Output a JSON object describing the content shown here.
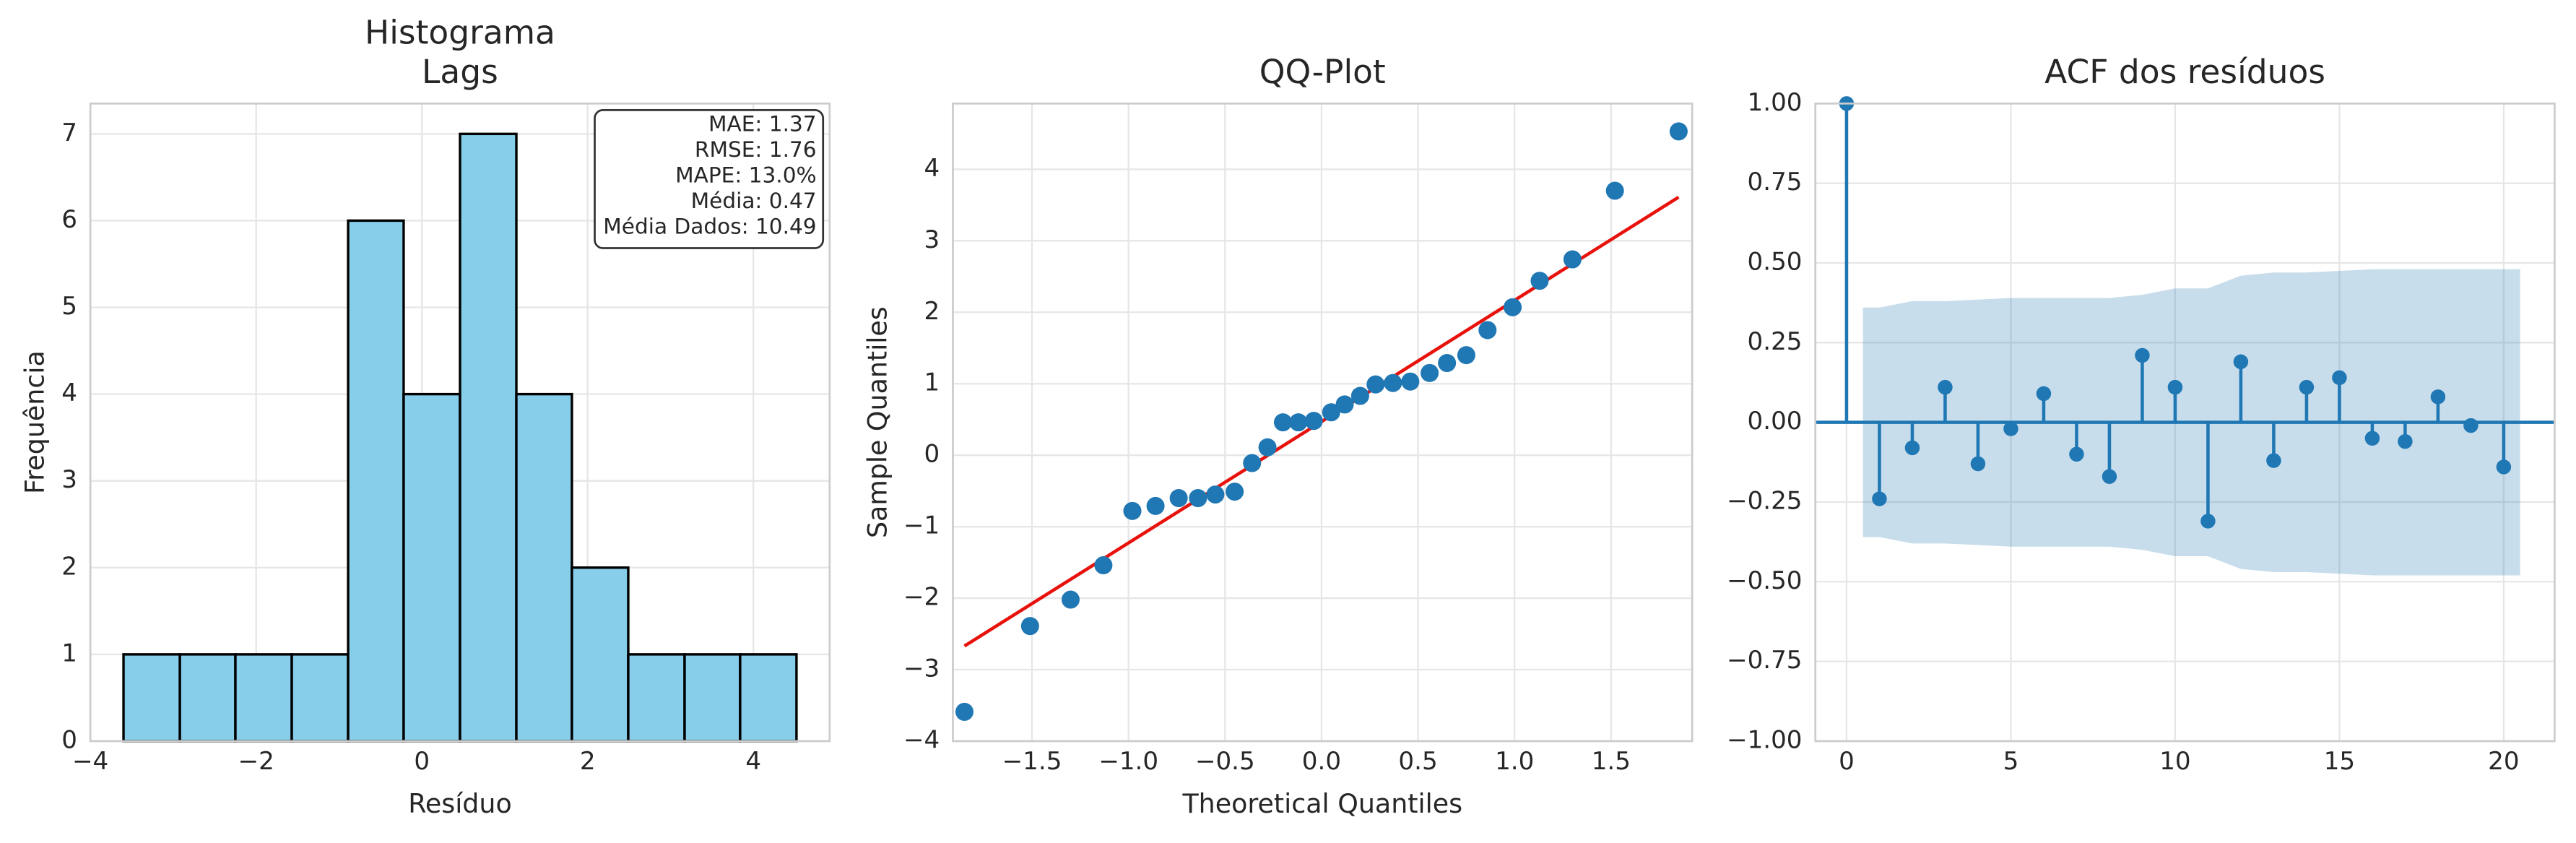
{
  "chart_data": [
    {
      "type": "histogram",
      "title": [
        "Histograma",
        "Lags"
      ],
      "x_label": "Resíduo",
      "y_label": "Frequência",
      "bins": [
        -3.6,
        -2.92,
        -2.25,
        -1.57,
        -0.89,
        -0.22,
        0.46,
        1.14,
        1.81,
        2.49,
        3.17,
        3.84,
        4.52
      ],
      "counts": [
        1,
        1,
        1,
        1,
        6,
        4,
        7,
        4,
        2,
        1,
        1,
        1
      ],
      "color": "#87ceeb",
      "edgecolor": "#000000",
      "xlim": [
        -4,
        4.92
      ],
      "ylim": [
        0,
        7.35
      ],
      "xticks": [
        {
          "value": -4,
          "label": "−4"
        },
        {
          "value": -2,
          "label": "−2"
        },
        0,
        2,
        4
      ],
      "yticks": [
        0,
        1,
        2,
        3,
        4,
        5,
        6,
        7
      ],
      "annotation": [
        "MAE: 1.37",
        "RMSE: 1.76",
        "MAPE: 13.0%",
        "Média: 0.47",
        "Média Dados: 10.49"
      ],
      "grid": true
    },
    {
      "type": "qqplot",
      "title": [
        "QQ-Plot"
      ],
      "x_label": "Theoretical Quantiles",
      "y_label": "Sample Quantiles",
      "x": [
        -1.85,
        -1.51,
        -1.3,
        -1.13,
        -0.98,
        -0.86,
        -0.74,
        -0.64,
        -0.55,
        -0.45,
        -0.36,
        -0.28,
        -0.2,
        -0.12,
        -0.04,
        0.05,
        0.12,
        0.2,
        0.28,
        0.37,
        0.46,
        0.56,
        0.65,
        0.75,
        0.86,
        0.99,
        1.13,
        1.3,
        1.52,
        1.85
      ],
      "y": [
        -3.59,
        -2.39,
        -2.02,
        -1.54,
        -0.78,
        -0.71,
        -0.6,
        -0.6,
        -0.55,
        -0.51,
        -0.11,
        0.11,
        0.46,
        0.46,
        0.48,
        0.6,
        0.71,
        0.83,
        0.99,
        1.01,
        1.03,
        1.15,
        1.29,
        1.4,
        1.75,
        2.07,
        2.44,
        2.74,
        3.7,
        4.53
      ],
      "color": "#1f77b4",
      "fit_line": {
        "x": [
          -1.85,
          1.85
        ],
        "y": [
          -2.67,
          3.61
        ],
        "color": "#e8120c"
      },
      "xlim": [
        -1.91,
        1.92
      ],
      "ylim": [
        -4,
        4.92
      ],
      "xticks": [
        {
          "value": -1.5,
          "label": "−1.5"
        },
        {
          "value": -1.0,
          "label": "−1.0"
        },
        {
          "value": -0.5,
          "label": "−0.5"
        },
        {
          "value": 0,
          "label": "0.0"
        },
        0.5,
        {
          "value": 1,
          "label": "1.0"
        },
        1.5
      ],
      "yticks": [
        {
          "value": -4,
          "label": "−4"
        },
        {
          "value": -3,
          "label": "−3"
        },
        {
          "value": -2,
          "label": "−2"
        },
        {
          "value": -1,
          "label": "−1"
        },
        0,
        1,
        2,
        3,
        4
      ],
      "grid": true
    },
    {
      "type": "acf",
      "title": [
        "ACF dos resíduos"
      ],
      "lags": [
        0,
        1,
        2,
        3,
        4,
        5,
        6,
        7,
        8,
        9,
        10,
        11,
        12,
        13,
        14,
        15,
        16,
        17,
        18,
        19,
        20
      ],
      "values": [
        1.0,
        -0.24,
        -0.08,
        0.11,
        -0.13,
        -0.02,
        0.09,
        -0.1,
        -0.17,
        0.21,
        0.11,
        -0.31,
        0.19,
        -0.12,
        0.11,
        0.14,
        -0.05,
        -0.06,
        0.08,
        -0.01,
        -0.14
      ],
      "color": "#1f77b4",
      "band": {
        "x": [
          0.5,
          1,
          2,
          3,
          4,
          5,
          6,
          7,
          8,
          9,
          10,
          11,
          12,
          13,
          14,
          15,
          16,
          17,
          18,
          19,
          20,
          20.5
        ],
        "upper": [
          0.36,
          0.36,
          0.38,
          0.38,
          0.385,
          0.39,
          0.39,
          0.39,
          0.39,
          0.4,
          0.42,
          0.42,
          0.46,
          0.47,
          0.47,
          0.475,
          0.48,
          0.48,
          0.48,
          0.48,
          0.48,
          0.48
        ],
        "lower": [
          -0.36,
          -0.36,
          -0.38,
          -0.38,
          -0.385,
          -0.39,
          -0.39,
          -0.39,
          -0.39,
          -0.4,
          -0.42,
          -0.42,
          -0.46,
          -0.47,
          -0.47,
          -0.475,
          -0.48,
          -0.48,
          -0.48,
          -0.48,
          -0.48,
          -0.48
        ],
        "color": "#1f77b4"
      },
      "xlim": [
        -0.95,
        21.55
      ],
      "ylim": [
        -1,
        1
      ],
      "xticks": [
        0,
        5,
        10,
        15,
        20
      ],
      "yticks": [
        {
          "value": -1,
          "label": "−1.00"
        },
        {
          "value": -0.75,
          "label": "−0.75"
        },
        {
          "value": -0.5,
          "label": "−0.50"
        },
        {
          "value": -0.25,
          "label": "−0.25"
        },
        {
          "value": 0,
          "label": "0.00"
        },
        {
          "value": 0.25,
          "label": "0.25"
        },
        {
          "value": 0.5,
          "label": "0.50"
        },
        {
          "value": 0.75,
          "label": "0.75"
        },
        {
          "value": 1,
          "label": "1.00"
        }
      ],
      "grid": true
    }
  ]
}
